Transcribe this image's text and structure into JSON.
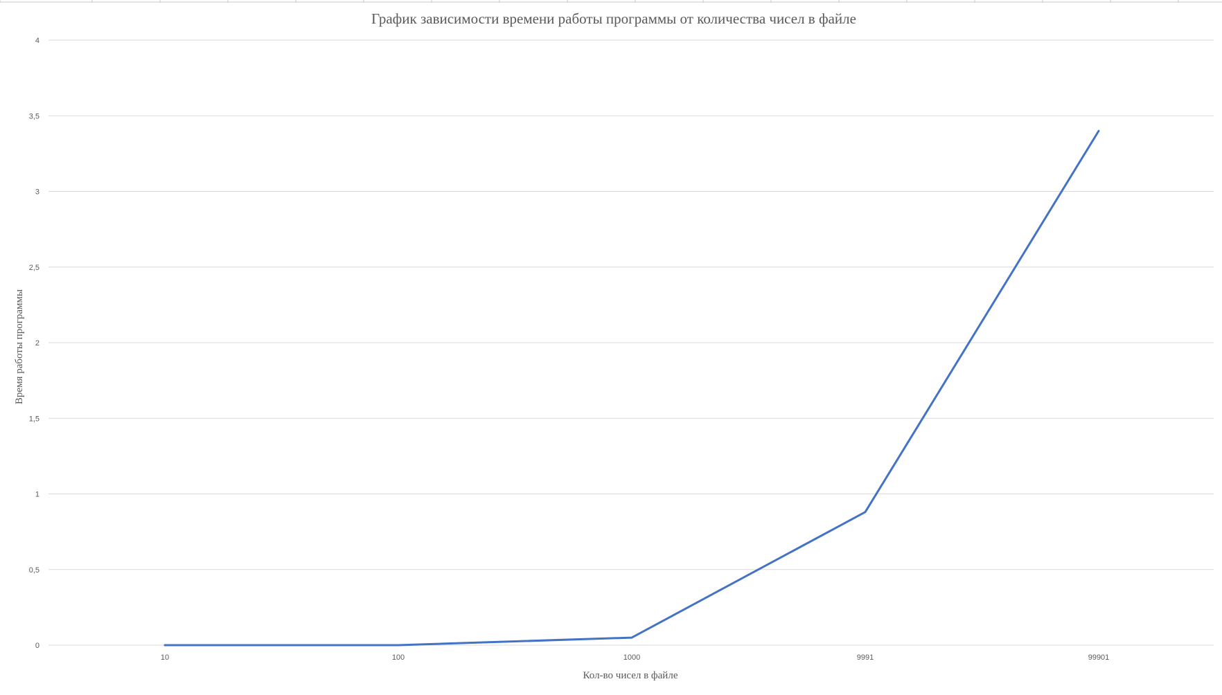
{
  "chart_data": {
    "type": "line",
    "title": "График зависимости времени работы программы от количества чисел в файле",
    "xlabel": "Кол-во чисел в файле",
    "ylabel": "Время работы программы",
    "categories": [
      "10",
      "100",
      "1000",
      "9991",
      "99901"
    ],
    "series": [
      {
        "values": [
          0,
          0,
          0.05,
          0.88,
          3.4
        ],
        "color": "#4472c4"
      }
    ],
    "ylim": [
      0,
      4
    ],
    "y_ticks": [
      "0",
      "0,5",
      "1",
      "1,5",
      "2",
      "2,5",
      "3",
      "3,5",
      "4"
    ],
    "grid": true,
    "legend": "none"
  }
}
